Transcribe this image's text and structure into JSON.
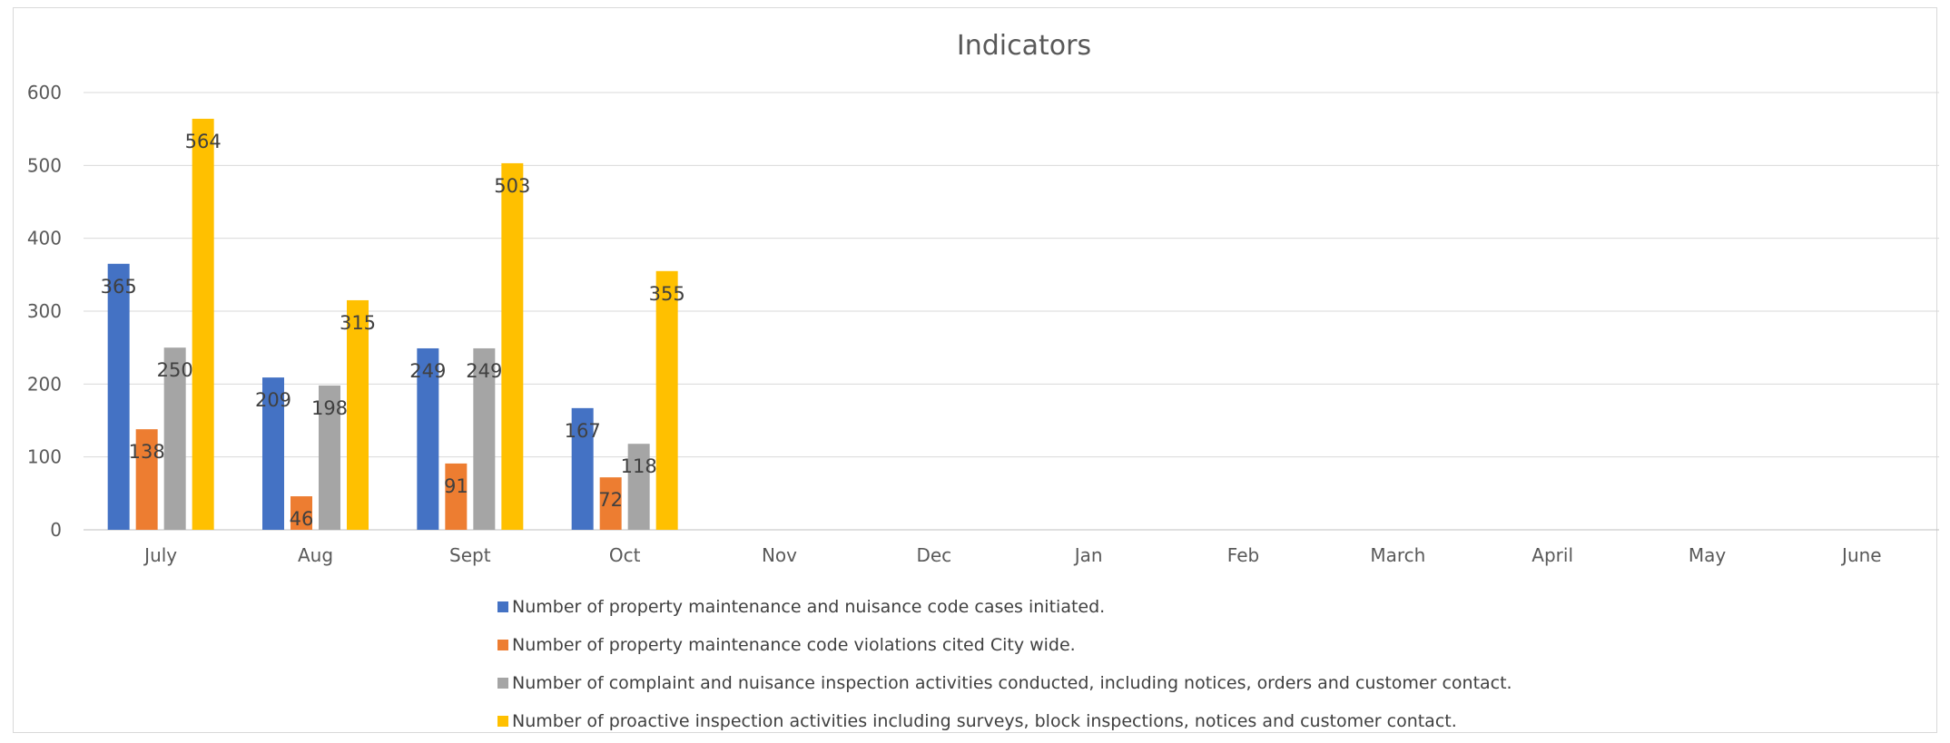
{
  "chart_data": {
    "type": "bar",
    "title": "Indicators",
    "categories": [
      "July",
      "Aug",
      "Sept",
      "Oct",
      "Nov",
      "Dec",
      "Jan",
      "Feb",
      "March",
      "April",
      "May",
      "June"
    ],
    "series": [
      {
        "name": "Number of property maintenance and nuisance code cases initiated.",
        "color": "#4472c4",
        "values": [
          365,
          209,
          249,
          167,
          null,
          null,
          null,
          null,
          null,
          null,
          null,
          null
        ]
      },
      {
        "name": "Number of property maintenance code violations cited City wide.",
        "color": "#ed7d31",
        "values": [
          138,
          46,
          91,
          72,
          null,
          null,
          null,
          null,
          null,
          null,
          null,
          null
        ]
      },
      {
        "name": "Number of complaint and nuisance inspection activities conducted, including  notices, orders and customer contact.",
        "color": "#a5a5a5",
        "values": [
          250,
          198,
          249,
          118,
          null,
          null,
          null,
          null,
          null,
          null,
          null,
          null
        ]
      },
      {
        "name": "Number of proactive inspection activities including surveys, block inspections, notices and customer contact.",
        "color": "#ffc000",
        "values": [
          564,
          315,
          503,
          355,
          null,
          null,
          null,
          null,
          null,
          null,
          null,
          null
        ]
      }
    ],
    "ylim": [
      0,
      600
    ],
    "yticks": [
      0,
      100,
      200,
      300,
      400,
      500,
      600
    ],
    "grid": true,
    "legend_position": "bottom",
    "data_labels": true
  }
}
